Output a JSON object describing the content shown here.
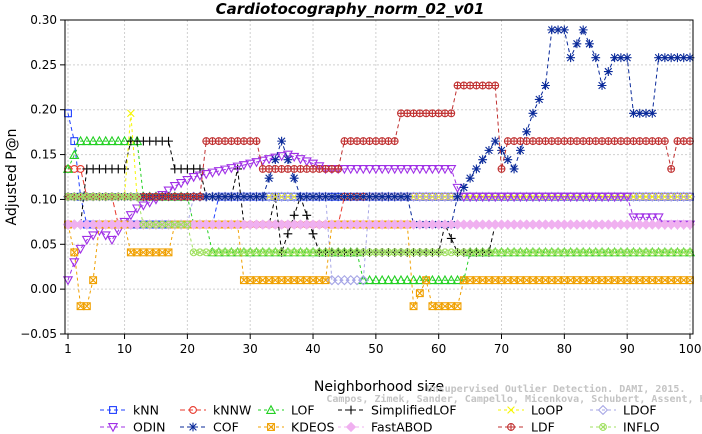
{
  "chart_data": {
    "type": "line",
    "title": "Cardiotocography_norm_02_v01",
    "xlabel": "Neighborhood size",
    "ylabel": "Adjusted P@n",
    "xlim": [
      1,
      100
    ],
    "ylim": [
      -0.05,
      0.3
    ],
    "xticks": [
      1,
      10,
      20,
      30,
      40,
      50,
      60,
      70,
      80,
      90,
      100
    ],
    "yticks": [
      -0.05,
      0.0,
      0.05,
      0.1,
      0.15,
      0.2,
      0.25,
      0.3
    ],
    "ytick_labels": [
      "−0.05",
      "0.00",
      "0.05",
      "0.10",
      "0.15",
      "0.20",
      "0.25",
      "0.30"
    ],
    "grid": true,
    "legend_position": "bottom",
    "series": [
      {
        "name": "kNN",
        "color": "#1f3fff",
        "marker": "square",
        "dash": "4,3",
        "segments": [
          [
            1,
            0.196
          ],
          [
            2,
            0.165
          ],
          [
            3,
            0.103
          ],
          [
            4,
            0.072
          ],
          [
            24,
            0.072
          ],
          [
            25,
            0.103
          ],
          [
            100,
            0.103
          ]
        ]
      },
      {
        "name": "kNNW",
        "color": "#e8382c",
        "marker": "circle",
        "dash": "5,3",
        "segments": [
          [
            1,
            0.134
          ],
          [
            3,
            0.134
          ],
          [
            4,
            0.103
          ],
          [
            8,
            0.103
          ],
          [
            9,
            0.072
          ],
          [
            44,
            0.072
          ],
          [
            45,
            0.103
          ],
          [
            100,
            0.103
          ]
        ]
      },
      {
        "name": "LOF",
        "color": "#22d022",
        "marker": "triangle-up",
        "dash": "3,3",
        "segments": [
          [
            1,
            0.134
          ],
          [
            3,
            0.165
          ],
          [
            12,
            0.165
          ],
          [
            13,
            0.103
          ],
          [
            20,
            0.103
          ],
          [
            21,
            0.072
          ],
          [
            23,
            0.072
          ],
          [
            24,
            0.041
          ],
          [
            47,
            0.041
          ],
          [
            48,
            0.01
          ],
          [
            64,
            0.01
          ],
          [
            65,
            0.041
          ],
          [
            100,
            0.041
          ]
        ]
      },
      {
        "name": "SimplifiedLOF",
        "color": "#000000",
        "marker": "plus",
        "dash": "4,3",
        "segments": [
          [
            1,
            0.072
          ],
          [
            3,
            0.072
          ],
          [
            4,
            0.134
          ],
          [
            10,
            0.134
          ],
          [
            11,
            0.165
          ],
          [
            17,
            0.165
          ],
          [
            18,
            0.134
          ],
          [
            22,
            0.134
          ],
          [
            23,
            0.103
          ],
          [
            27,
            0.103
          ],
          [
            28,
            0.134
          ],
          [
            29,
            0.072
          ],
          [
            33,
            0.072
          ],
          [
            34,
            0.103
          ],
          [
            35,
            0.041
          ],
          [
            38,
            0.103
          ],
          [
            41,
            0.041
          ],
          [
            60,
            0.041
          ],
          [
            61,
            0.072
          ],
          [
            63,
            0.041
          ],
          [
            68,
            0.041
          ],
          [
            69,
            0.072
          ],
          [
            100,
            0.072
          ]
        ]
      },
      {
        "name": "LoOP",
        "color": "#f6f600",
        "marker": "x",
        "dash": "3,3",
        "segments": [
          [
            1,
            0.103
          ],
          [
            10,
            0.103
          ],
          [
            11,
            0.196
          ],
          [
            12,
            0.103
          ],
          [
            100,
            0.103
          ]
        ]
      },
      {
        "name": "LDOF",
        "color": "#a6a6e6",
        "marker": "diamond",
        "dash": "3,3",
        "segments": [
          [
            1,
            0.072
          ],
          [
            20,
            0.072
          ],
          [
            21,
            0.103
          ],
          [
            42,
            0.103
          ],
          [
            43,
            0.01
          ],
          [
            48,
            0.01
          ],
          [
            49,
            0.103
          ],
          [
            100,
            0.103
          ]
        ]
      },
      {
        "name": "ODIN",
        "color": "#a030e6",
        "marker": "triangle-down",
        "dash": "4,3",
        "segments": [
          [
            1,
            0.01
          ],
          [
            2,
            0.03
          ],
          [
            3,
            0.045
          ],
          [
            4,
            0.055
          ],
          [
            6,
            0.065
          ],
          [
            8,
            0.055
          ],
          [
            10,
            0.075
          ],
          [
            12,
            0.09
          ],
          [
            15,
            0.1
          ],
          [
            18,
            0.115
          ],
          [
            21,
            0.125
          ],
          [
            24,
            0.13
          ],
          [
            27,
            0.135
          ],
          [
            30,
            0.14
          ],
          [
            33,
            0.145
          ],
          [
            36,
            0.15
          ],
          [
            40,
            0.14
          ],
          [
            42,
            0.134
          ],
          [
            62,
            0.134
          ],
          [
            63,
            0.113
          ],
          [
            64,
            0.103
          ],
          [
            90,
            0.103
          ],
          [
            91,
            0.08
          ],
          [
            95,
            0.08
          ],
          [
            96,
            0.072
          ],
          [
            100,
            0.072
          ]
        ]
      },
      {
        "name": "COF",
        "color": "#0a2a9a",
        "marker": "star",
        "dash": "4,3",
        "segments": [
          [
            1,
            0.103
          ],
          [
            32,
            0.103
          ],
          [
            35,
            0.165
          ],
          [
            38,
            0.103
          ],
          [
            55,
            0.103
          ],
          [
            56,
            0.072
          ],
          [
            62,
            0.072
          ],
          [
            63,
            0.103
          ],
          [
            66,
            0.134
          ],
          [
            69,
            0.165
          ],
          [
            72,
            0.134
          ],
          [
            75,
            0.196
          ],
          [
            77,
            0.227
          ],
          [
            78,
            0.289
          ],
          [
            80,
            0.289
          ],
          [
            81,
            0.258
          ],
          [
            83,
            0.289
          ],
          [
            85,
            0.258
          ],
          [
            86,
            0.227
          ],
          [
            88,
            0.258
          ],
          [
            90,
            0.258
          ],
          [
            91,
            0.196
          ],
          [
            94,
            0.196
          ],
          [
            95,
            0.258
          ],
          [
            100,
            0.258
          ]
        ]
      },
      {
        "name": "KDEOS",
        "color": "#f0a000",
        "marker": "square-x",
        "dash": "3,3",
        "segments": [
          [
            1,
            0.072
          ],
          [
            2,
            0.041
          ],
          [
            3,
            -0.019
          ],
          [
            4,
            -0.019
          ],
          [
            5,
            0.01
          ],
          [
            6,
            0.072
          ],
          [
            10,
            0.072
          ],
          [
            11,
            0.041
          ],
          [
            17,
            0.041
          ],
          [
            18,
            0.072
          ],
          [
            28,
            0.072
          ],
          [
            29,
            0.01
          ],
          [
            42,
            0.01
          ],
          [
            43,
            0.072
          ],
          [
            55,
            0.072
          ],
          [
            56,
            -0.019
          ],
          [
            58,
            0.01
          ],
          [
            59,
            -0.019
          ],
          [
            63,
            -0.019
          ],
          [
            64,
            0.01
          ],
          [
            100,
            0.01
          ]
        ]
      },
      {
        "name": "FastABOD",
        "color": "#f0b0f0",
        "marker": "diamond-filled",
        "dash": "3,3",
        "segments": [
          [
            1,
            0.072
          ],
          [
            100,
            0.072
          ]
        ]
      },
      {
        "name": "LDF",
        "color": "#c03030",
        "marker": "circle-plus",
        "dash": "4,3",
        "segments": [
          [
            1,
            0.103
          ],
          [
            22,
            0.103
          ],
          [
            23,
            0.165
          ],
          [
            31,
            0.165
          ],
          [
            32,
            0.134
          ],
          [
            44,
            0.134
          ],
          [
            45,
            0.165
          ],
          [
            53,
            0.165
          ],
          [
            54,
            0.196
          ],
          [
            62,
            0.196
          ],
          [
            63,
            0.227
          ],
          [
            69,
            0.227
          ],
          [
            70,
            0.134
          ],
          [
            71,
            0.165
          ],
          [
            96,
            0.165
          ],
          [
            97,
            0.134
          ],
          [
            98,
            0.165
          ],
          [
            100,
            0.165
          ]
        ]
      },
      {
        "name": "INFLO",
        "color": "#a0e060",
        "marker": "circle-x",
        "dash": "3,3",
        "segments": [
          [
            1,
            0.103
          ],
          [
            12,
            0.103
          ],
          [
            13,
            0.072
          ],
          [
            20,
            0.072
          ],
          [
            21,
            0.041
          ],
          [
            100,
            0.041
          ]
        ]
      }
    ]
  },
  "watermark": {
    "line1": "Unsupervised Outlier Detection. DAMI, 2015.",
    "line2": "Campos, Zimek, Sander, Campello, Micenkova, Schubert, Assent, Houle"
  }
}
